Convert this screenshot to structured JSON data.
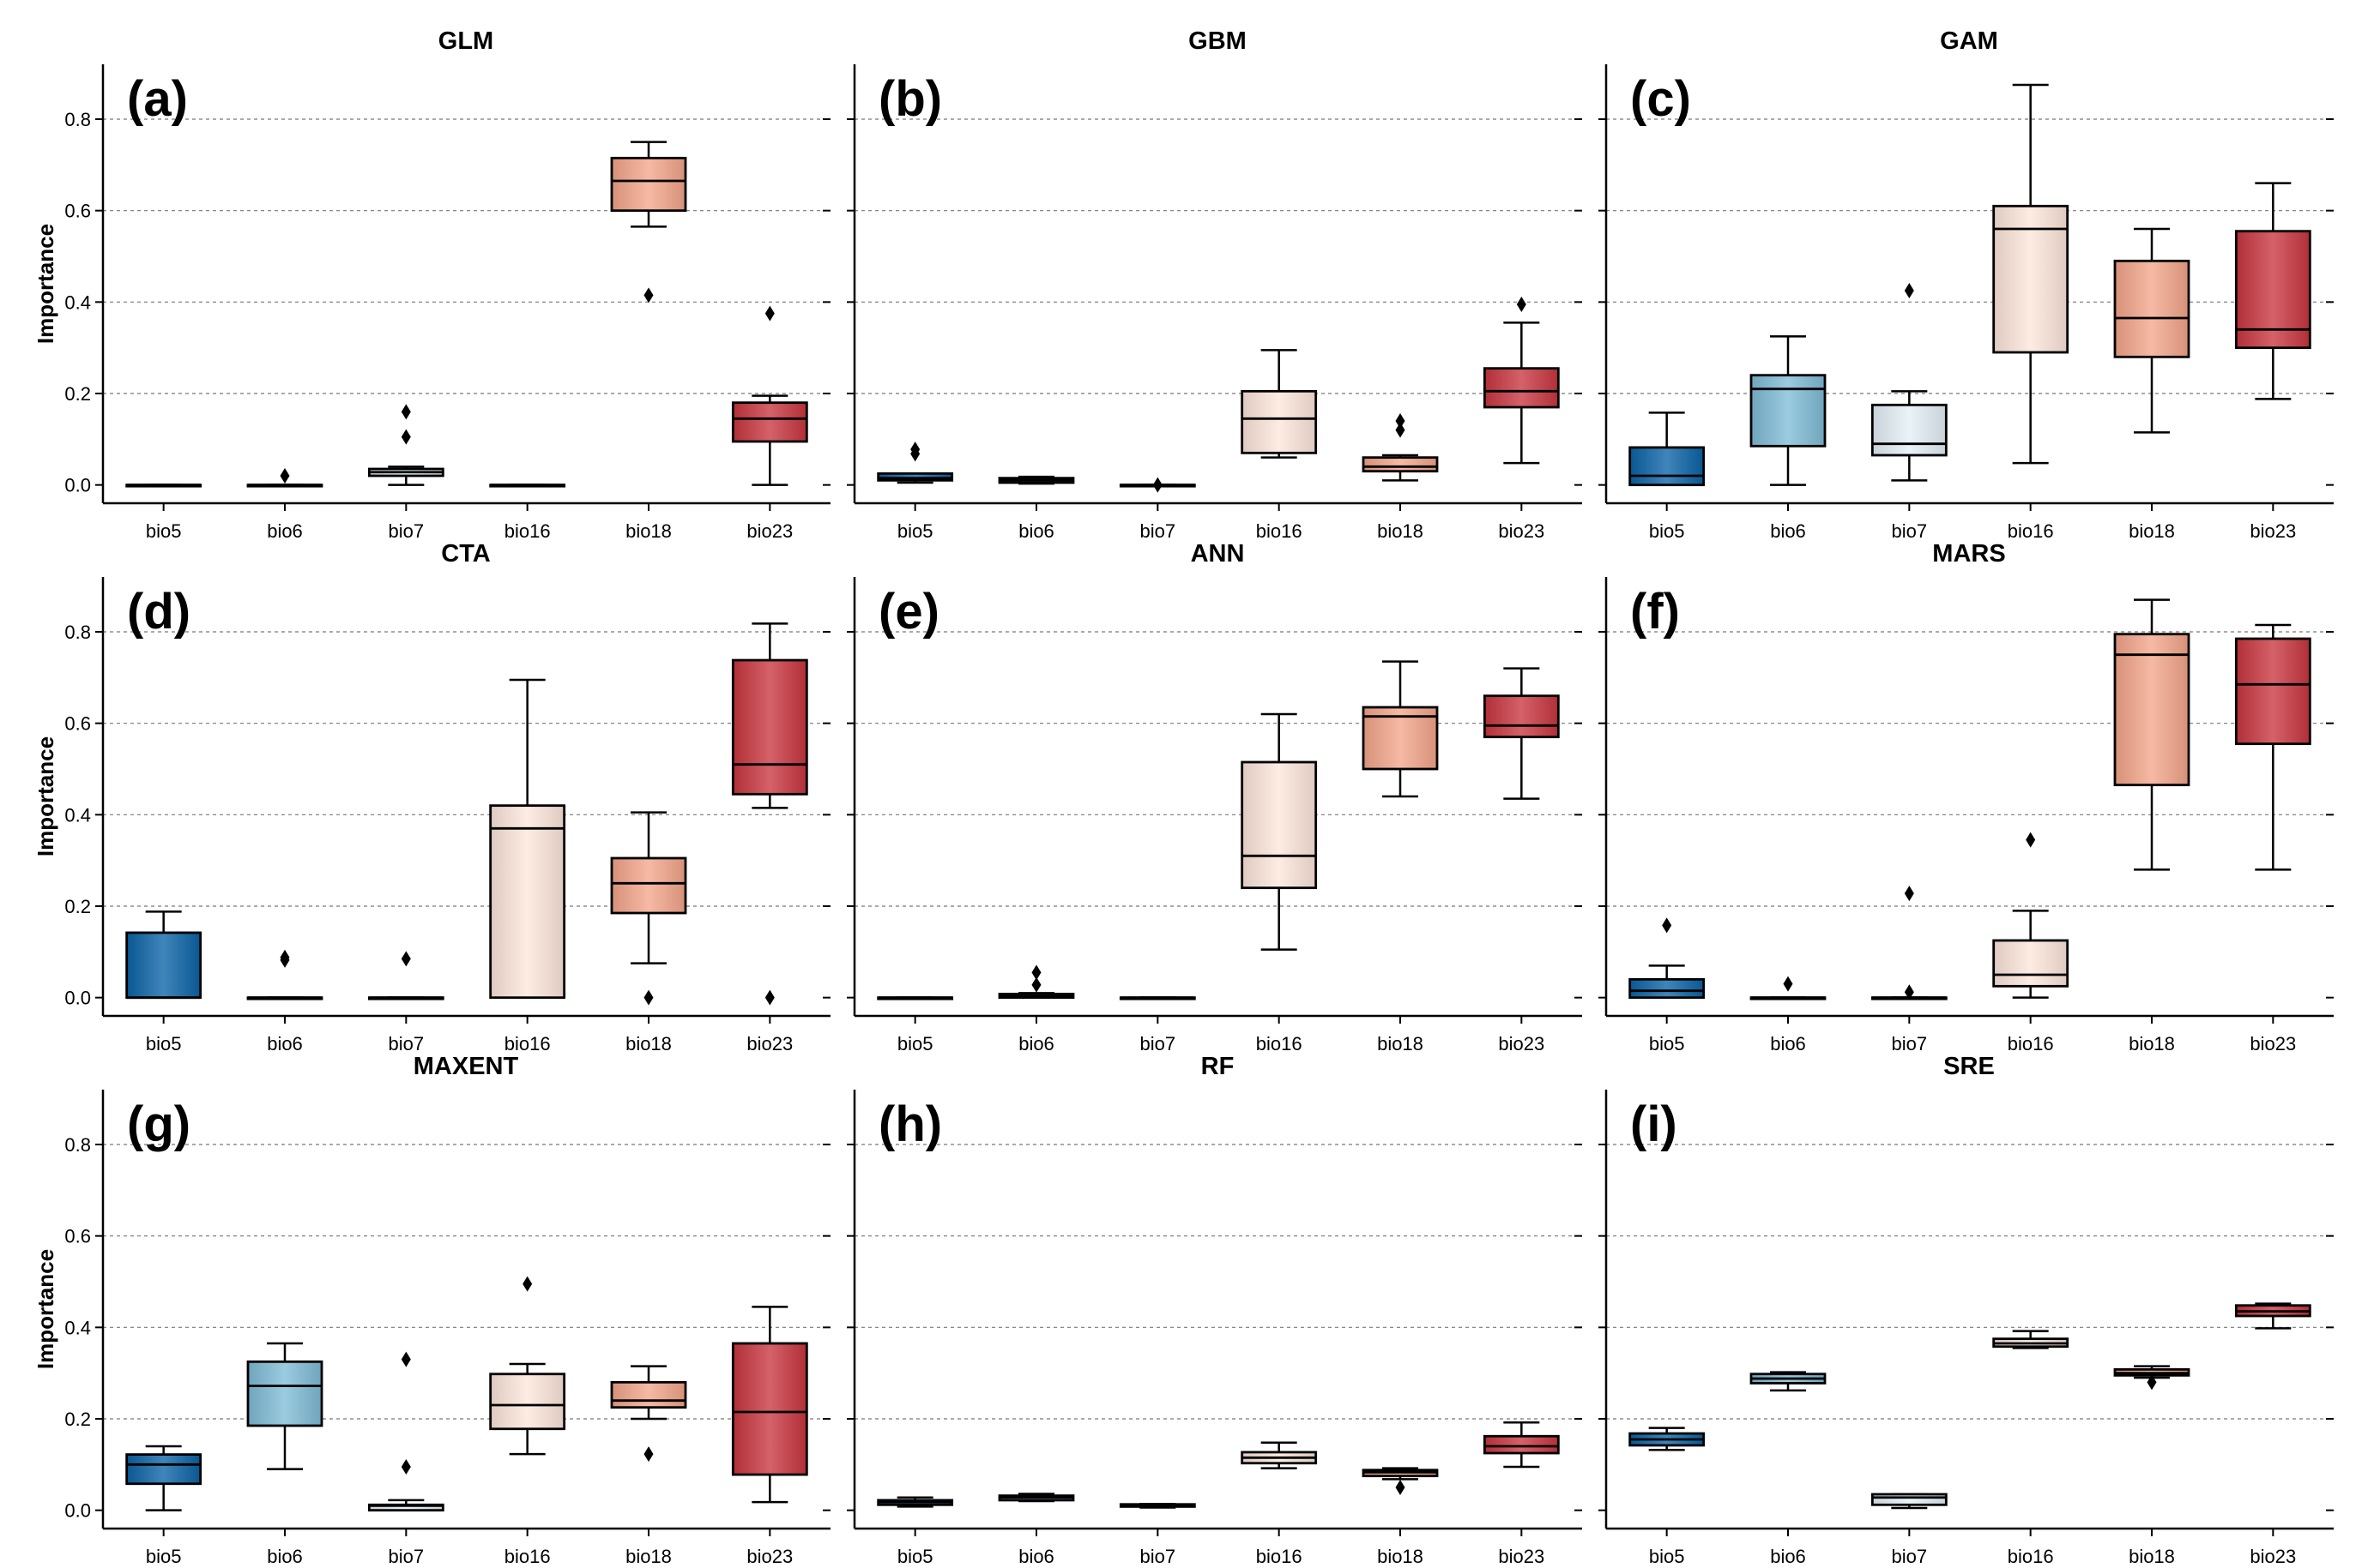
{
  "chart_data": {
    "type": "box",
    "ylabel": "Importance",
    "ylim": [
      -0.04,
      0.92
    ],
    "yticks": [
      "0.0",
      "0.2",
      "0.4",
      "0.6",
      "0.8"
    ],
    "ytick_values": [
      0.0,
      0.2,
      0.4,
      0.6,
      0.8
    ],
    "categories": [
      "bio5",
      "bio6",
      "bio7",
      "bio16",
      "bio18",
      "bio23"
    ],
    "category_colors": {
      "bio5": "#0a63a6",
      "bio6": "#7fbcd6",
      "bio7": "#e4eff6",
      "bio16": "#fde6db",
      "bio18": "#f4a58a",
      "bio23": "#c9353f"
    },
    "grid": "horizontal-dashed",
    "panels": [
      {
        "letter": "(a)",
        "title": "GLM",
        "boxes": [
          {
            "cat": "bio5",
            "q1": 0.0,
            "med": 0.0,
            "q3": 0.0,
            "lo": 0.0,
            "hi": 0.0,
            "fliers": []
          },
          {
            "cat": "bio6",
            "q1": 0.0,
            "med": 0.0,
            "q3": 0.0,
            "lo": 0.0,
            "hi": 0.0,
            "fliers": [
              0.02
            ]
          },
          {
            "cat": "bio7",
            "q1": 0.02,
            "med": 0.028,
            "q3": 0.035,
            "lo": 0.0,
            "hi": 0.04,
            "fliers": [
              0.105,
              0.16
            ]
          },
          {
            "cat": "bio16",
            "q1": 0.0,
            "med": 0.0,
            "q3": 0.0,
            "lo": 0.0,
            "hi": 0.0,
            "fliers": []
          },
          {
            "cat": "bio18",
            "q1": 0.6,
            "med": 0.665,
            "q3": 0.715,
            "lo": 0.565,
            "hi": 0.75,
            "fliers": [
              0.415
            ]
          },
          {
            "cat": "bio23",
            "q1": 0.095,
            "med": 0.145,
            "q3": 0.18,
            "lo": 0.0,
            "hi": 0.195,
            "fliers": [
              0.375
            ]
          }
        ]
      },
      {
        "letter": "(b)",
        "title": "GBM",
        "boxes": [
          {
            "cat": "bio5",
            "q1": 0.01,
            "med": 0.015,
            "q3": 0.025,
            "lo": 0.005,
            "hi": 0.025,
            "fliers": [
              0.068,
              0.078
            ]
          },
          {
            "cat": "bio6",
            "q1": 0.005,
            "med": 0.01,
            "q3": 0.015,
            "lo": 0.003,
            "hi": 0.018,
            "fliers": []
          },
          {
            "cat": "bio7",
            "q1": 0.0,
            "med": 0.0,
            "q3": 0.0,
            "lo": 0.0,
            "hi": 0.0,
            "fliers": [
              0.0
            ]
          },
          {
            "cat": "bio16",
            "q1": 0.07,
            "med": 0.145,
            "q3": 0.205,
            "lo": 0.06,
            "hi": 0.295,
            "fliers": []
          },
          {
            "cat": "bio18",
            "q1": 0.03,
            "med": 0.04,
            "q3": 0.06,
            "lo": 0.01,
            "hi": 0.065,
            "fliers": [
              0.12,
              0.14
            ]
          },
          {
            "cat": "bio23",
            "q1": 0.17,
            "med": 0.205,
            "q3": 0.255,
            "lo": 0.048,
            "hi": 0.355,
            "fliers": [
              0.395
            ]
          }
        ]
      },
      {
        "letter": "(c)",
        "title": "GAM",
        "boxes": [
          {
            "cat": "bio5",
            "q1": 0.0,
            "med": 0.02,
            "q3": 0.082,
            "lo": 0.0,
            "hi": 0.158,
            "fliers": []
          },
          {
            "cat": "bio6",
            "q1": 0.085,
            "med": 0.21,
            "q3": 0.24,
            "lo": 0.0,
            "hi": 0.325,
            "fliers": []
          },
          {
            "cat": "bio7",
            "q1": 0.065,
            "med": 0.09,
            "q3": 0.175,
            "lo": 0.01,
            "hi": 0.205,
            "fliers": [
              0.425
            ]
          },
          {
            "cat": "bio16",
            "q1": 0.29,
            "med": 0.56,
            "q3": 0.61,
            "lo": 0.048,
            "hi": 0.875,
            "fliers": []
          },
          {
            "cat": "bio18",
            "q1": 0.28,
            "med": 0.365,
            "q3": 0.49,
            "lo": 0.115,
            "hi": 0.56,
            "fliers": []
          },
          {
            "cat": "bio23",
            "q1": 0.3,
            "med": 0.34,
            "q3": 0.555,
            "lo": 0.188,
            "hi": 0.66,
            "fliers": []
          }
        ]
      },
      {
        "letter": "(d)",
        "title": "CTA",
        "boxes": [
          {
            "cat": "bio5",
            "q1": 0.0,
            "med": 0.0,
            "q3": 0.142,
            "lo": 0.0,
            "hi": 0.188,
            "fliers": []
          },
          {
            "cat": "bio6",
            "q1": 0.0,
            "med": 0.0,
            "q3": 0.0,
            "lo": 0.0,
            "hi": 0.0,
            "fliers": [
              0.082,
              0.088
            ]
          },
          {
            "cat": "bio7",
            "q1": 0.0,
            "med": 0.0,
            "q3": 0.0,
            "lo": 0.0,
            "hi": 0.0,
            "fliers": [
              0.085
            ]
          },
          {
            "cat": "bio16",
            "q1": 0.0,
            "med": 0.37,
            "q3": 0.42,
            "lo": 0.0,
            "hi": 0.695,
            "fliers": []
          },
          {
            "cat": "bio18",
            "q1": 0.185,
            "med": 0.25,
            "q3": 0.305,
            "lo": 0.075,
            "hi": 0.405,
            "fliers": [
              0.0
            ]
          },
          {
            "cat": "bio23",
            "q1": 0.445,
            "med": 0.51,
            "q3": 0.738,
            "lo": 0.415,
            "hi": 0.818,
            "fliers": [
              0.0
            ]
          }
        ]
      },
      {
        "letter": "(e)",
        "title": "ANN",
        "boxes": [
          {
            "cat": "bio5",
            "q1": 0.0,
            "med": 0.0,
            "q3": 0.0,
            "lo": 0.0,
            "hi": 0.0,
            "fliers": []
          },
          {
            "cat": "bio6",
            "q1": 0.0,
            "med": 0.003,
            "q3": 0.008,
            "lo": 0.0,
            "hi": 0.01,
            "fliers": [
              0.028,
              0.055
            ]
          },
          {
            "cat": "bio7",
            "q1": 0.0,
            "med": 0.0,
            "q3": 0.0,
            "lo": 0.0,
            "hi": 0.0,
            "fliers": []
          },
          {
            "cat": "bio16",
            "q1": 0.24,
            "med": 0.31,
            "q3": 0.515,
            "lo": 0.105,
            "hi": 0.62,
            "fliers": []
          },
          {
            "cat": "bio18",
            "q1": 0.5,
            "med": 0.615,
            "q3": 0.635,
            "lo": 0.44,
            "hi": 0.735,
            "fliers": []
          },
          {
            "cat": "bio23",
            "q1": 0.57,
            "med": 0.595,
            "q3": 0.66,
            "lo": 0.435,
            "hi": 0.72,
            "fliers": []
          }
        ]
      },
      {
        "letter": "(f)",
        "title": "MARS",
        "boxes": [
          {
            "cat": "bio5",
            "q1": 0.0,
            "med": 0.015,
            "q3": 0.04,
            "lo": 0.0,
            "hi": 0.07,
            "fliers": [
              0.158
            ]
          },
          {
            "cat": "bio6",
            "q1": 0.0,
            "med": 0.0,
            "q3": 0.0,
            "lo": 0.0,
            "hi": 0.0,
            "fliers": [
              0.03
            ]
          },
          {
            "cat": "bio7",
            "q1": 0.0,
            "med": 0.0,
            "q3": 0.0,
            "lo": 0.0,
            "hi": 0.0,
            "fliers": [
              0.012,
              0.228
            ]
          },
          {
            "cat": "bio16",
            "q1": 0.025,
            "med": 0.05,
            "q3": 0.125,
            "lo": 0.0,
            "hi": 0.19,
            "fliers": [
              0.345
            ]
          },
          {
            "cat": "bio18",
            "q1": 0.465,
            "med": 0.75,
            "q3": 0.795,
            "lo": 0.28,
            "hi": 0.87,
            "fliers": []
          },
          {
            "cat": "bio23",
            "q1": 0.555,
            "med": 0.685,
            "q3": 0.785,
            "lo": 0.28,
            "hi": 0.815,
            "fliers": []
          }
        ]
      },
      {
        "letter": "(g)",
        "title": "MAXENT",
        "boxes": [
          {
            "cat": "bio5",
            "q1": 0.058,
            "med": 0.1,
            "q3": 0.122,
            "lo": 0.0,
            "hi": 0.14,
            "fliers": []
          },
          {
            "cat": "bio6",
            "q1": 0.185,
            "med": 0.272,
            "q3": 0.325,
            "lo": 0.09,
            "hi": 0.365,
            "fliers": []
          },
          {
            "cat": "bio7",
            "q1": 0.0,
            "med": 0.01,
            "q3": 0.012,
            "lo": 0.0,
            "hi": 0.022,
            "fliers": [
              0.095,
              0.33
            ]
          },
          {
            "cat": "bio16",
            "q1": 0.178,
            "med": 0.23,
            "q3": 0.298,
            "lo": 0.123,
            "hi": 0.32,
            "fliers": [
              0.495
            ]
          },
          {
            "cat": "bio18",
            "q1": 0.225,
            "med": 0.24,
            "q3": 0.28,
            "lo": 0.2,
            "hi": 0.315,
            "fliers": [
              0.123
            ]
          },
          {
            "cat": "bio23",
            "q1": 0.078,
            "med": 0.215,
            "q3": 0.365,
            "lo": 0.018,
            "hi": 0.445,
            "fliers": []
          }
        ]
      },
      {
        "letter": "(h)",
        "title": "RF",
        "boxes": [
          {
            "cat": "bio5",
            "q1": 0.012,
            "med": 0.018,
            "q3": 0.022,
            "lo": 0.008,
            "hi": 0.028,
            "fliers": []
          },
          {
            "cat": "bio6",
            "q1": 0.022,
            "med": 0.028,
            "q3": 0.032,
            "lo": 0.02,
            "hi": 0.036,
            "fliers": []
          },
          {
            "cat": "bio7",
            "q1": 0.008,
            "med": 0.011,
            "q3": 0.013,
            "lo": 0.006,
            "hi": 0.014,
            "fliers": []
          },
          {
            "cat": "bio16",
            "q1": 0.103,
            "med": 0.115,
            "q3": 0.127,
            "lo": 0.092,
            "hi": 0.148,
            "fliers": []
          },
          {
            "cat": "bio18",
            "q1": 0.075,
            "med": 0.083,
            "q3": 0.088,
            "lo": 0.068,
            "hi": 0.092,
            "fliers": [
              0.05
            ]
          },
          {
            "cat": "bio23",
            "q1": 0.125,
            "med": 0.14,
            "q3": 0.162,
            "lo": 0.095,
            "hi": 0.192,
            "fliers": []
          }
        ]
      },
      {
        "letter": "(i)",
        "title": "SRE",
        "boxes": [
          {
            "cat": "bio5",
            "q1": 0.142,
            "med": 0.155,
            "q3": 0.168,
            "lo": 0.132,
            "hi": 0.18,
            "fliers": []
          },
          {
            "cat": "bio6",
            "q1": 0.278,
            "med": 0.288,
            "q3": 0.298,
            "lo": 0.262,
            "hi": 0.302,
            "fliers": []
          },
          {
            "cat": "bio7",
            "q1": 0.012,
            "med": 0.028,
            "q3": 0.035,
            "lo": 0.005,
            "hi": 0.035,
            "fliers": []
          },
          {
            "cat": "bio16",
            "q1": 0.358,
            "med": 0.365,
            "q3": 0.375,
            "lo": 0.355,
            "hi": 0.392,
            "fliers": []
          },
          {
            "cat": "bio18",
            "q1": 0.295,
            "med": 0.3,
            "q3": 0.308,
            "lo": 0.29,
            "hi": 0.315,
            "fliers": [
              0.28
            ]
          },
          {
            "cat": "bio23",
            "q1": 0.425,
            "med": 0.435,
            "q3": 0.448,
            "lo": 0.398,
            "hi": 0.452,
            "fliers": []
          }
        ]
      }
    ]
  }
}
